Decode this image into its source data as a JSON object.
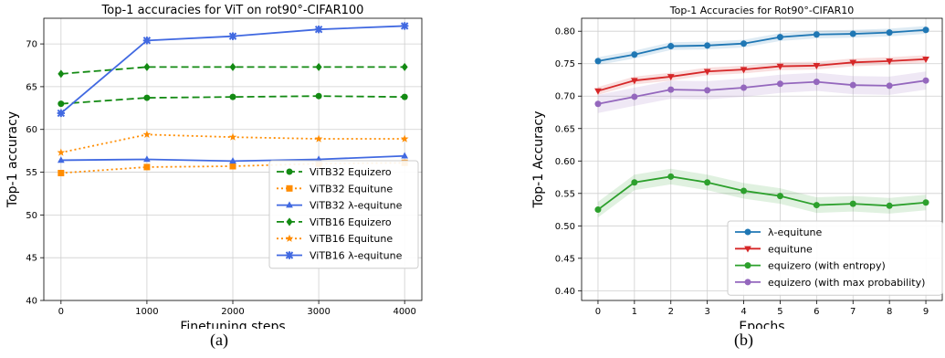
{
  "captions": {
    "a": "(a)",
    "b": "(b)"
  },
  "chart_data": [
    {
      "type": "line",
      "title": "Top-1 accuracies for ViT on rot90°-CIFAR100",
      "xlabel": "Finetuning steps",
      "ylabel": "Top-1 accuracy",
      "x": [
        0,
        1000,
        2000,
        3000,
        4000
      ],
      "xticks": [
        "0",
        "1000",
        "2000",
        "3000",
        "4000"
      ],
      "yticks": [
        "40",
        "45",
        "50",
        "55",
        "60",
        "65",
        "70"
      ],
      "xlim": [
        -200,
        4200
      ],
      "ylim": [
        40,
        73
      ],
      "grid": true,
      "legend_position": "bottom-right",
      "series": [
        {
          "name": "ViTB32 Equizero",
          "values": [
            63.0,
            63.7,
            63.8,
            63.9,
            63.8
          ],
          "color": "#138a13",
          "dash": "8,4",
          "marker": "circle"
        },
        {
          "name": "ViTB32 Equitune",
          "values": [
            54.9,
            55.6,
            55.7,
            56.0,
            56.1
          ],
          "color": "#ff8c00",
          "dash": "2,3",
          "marker": "square"
        },
        {
          "name": "ViTB32  λ-equitune",
          "values": [
            56.4,
            56.5,
            56.3,
            56.5,
            56.9
          ],
          "color": "#4169e1",
          "dash": "",
          "marker": "triangle"
        },
        {
          "name": "ViTB16 Equizero",
          "values": [
            66.5,
            67.3,
            67.3,
            67.3,
            67.3
          ],
          "color": "#138a13",
          "dash": "8,4",
          "marker": "diamond"
        },
        {
          "name": "ViTB16 Equitune",
          "values": [
            57.3,
            59.4,
            59.1,
            58.9,
            58.9
          ],
          "color": "#ff8c00",
          "dash": "2,3",
          "marker": "star"
        },
        {
          "name": "ViTB16  λ-equitune",
          "values": [
            61.9,
            70.4,
            70.9,
            71.7,
            72.1
          ],
          "color": "#4169e1",
          "dash": "",
          "marker": "x"
        }
      ]
    },
    {
      "type": "line",
      "title": "Top-1 Accuracies for Rot90°-CIFAR10",
      "xlabel": "Epochs",
      "ylabel": "Top-1 Accuracy",
      "x": [
        0,
        1,
        2,
        3,
        4,
        5,
        6,
        7,
        8,
        9
      ],
      "xticks": [
        "0",
        "1",
        "2",
        "3",
        "4",
        "5",
        "6",
        "7",
        "8",
        "9"
      ],
      "yticks": [
        "0.40",
        "0.45",
        "0.50",
        "0.55",
        "0.60",
        "0.65",
        "0.70",
        "0.75",
        "0.80"
      ],
      "xlim": [
        -0.45,
        9.45
      ],
      "ylim": [
        0.385,
        0.82
      ],
      "grid": true,
      "legend_position": "bottom-right",
      "series": [
        {
          "name": "λ-equitune",
          "values": [
            0.754,
            0.764,
            0.777,
            0.778,
            0.781,
            0.791,
            0.795,
            0.796,
            0.798,
            0.802
          ],
          "band": 0.006,
          "color": "#1f77b4",
          "marker": "circle"
        },
        {
          "name": "equitune",
          "values": [
            0.708,
            0.724,
            0.73,
            0.738,
            0.741,
            0.746,
            0.747,
            0.752,
            0.754,
            0.757
          ],
          "band": 0.006,
          "color": "#d62728",
          "marker": "triangle-down"
        },
        {
          "name": "equizero (with entropy)",
          "values": [
            0.525,
            0.567,
            0.576,
            0.567,
            0.554,
            0.546,
            0.532,
            0.534,
            0.531,
            0.536
          ],
          "band": 0.012,
          "color": "#2ca02c",
          "marker": "circle"
        },
        {
          "name": "equizero (with max probability)",
          "values": [
            0.688,
            0.699,
            0.71,
            0.709,
            0.713,
            0.719,
            0.722,
            0.717,
            0.716,
            0.724
          ],
          "band": 0.014,
          "color": "#9467bd",
          "marker": "circle"
        }
      ]
    }
  ]
}
